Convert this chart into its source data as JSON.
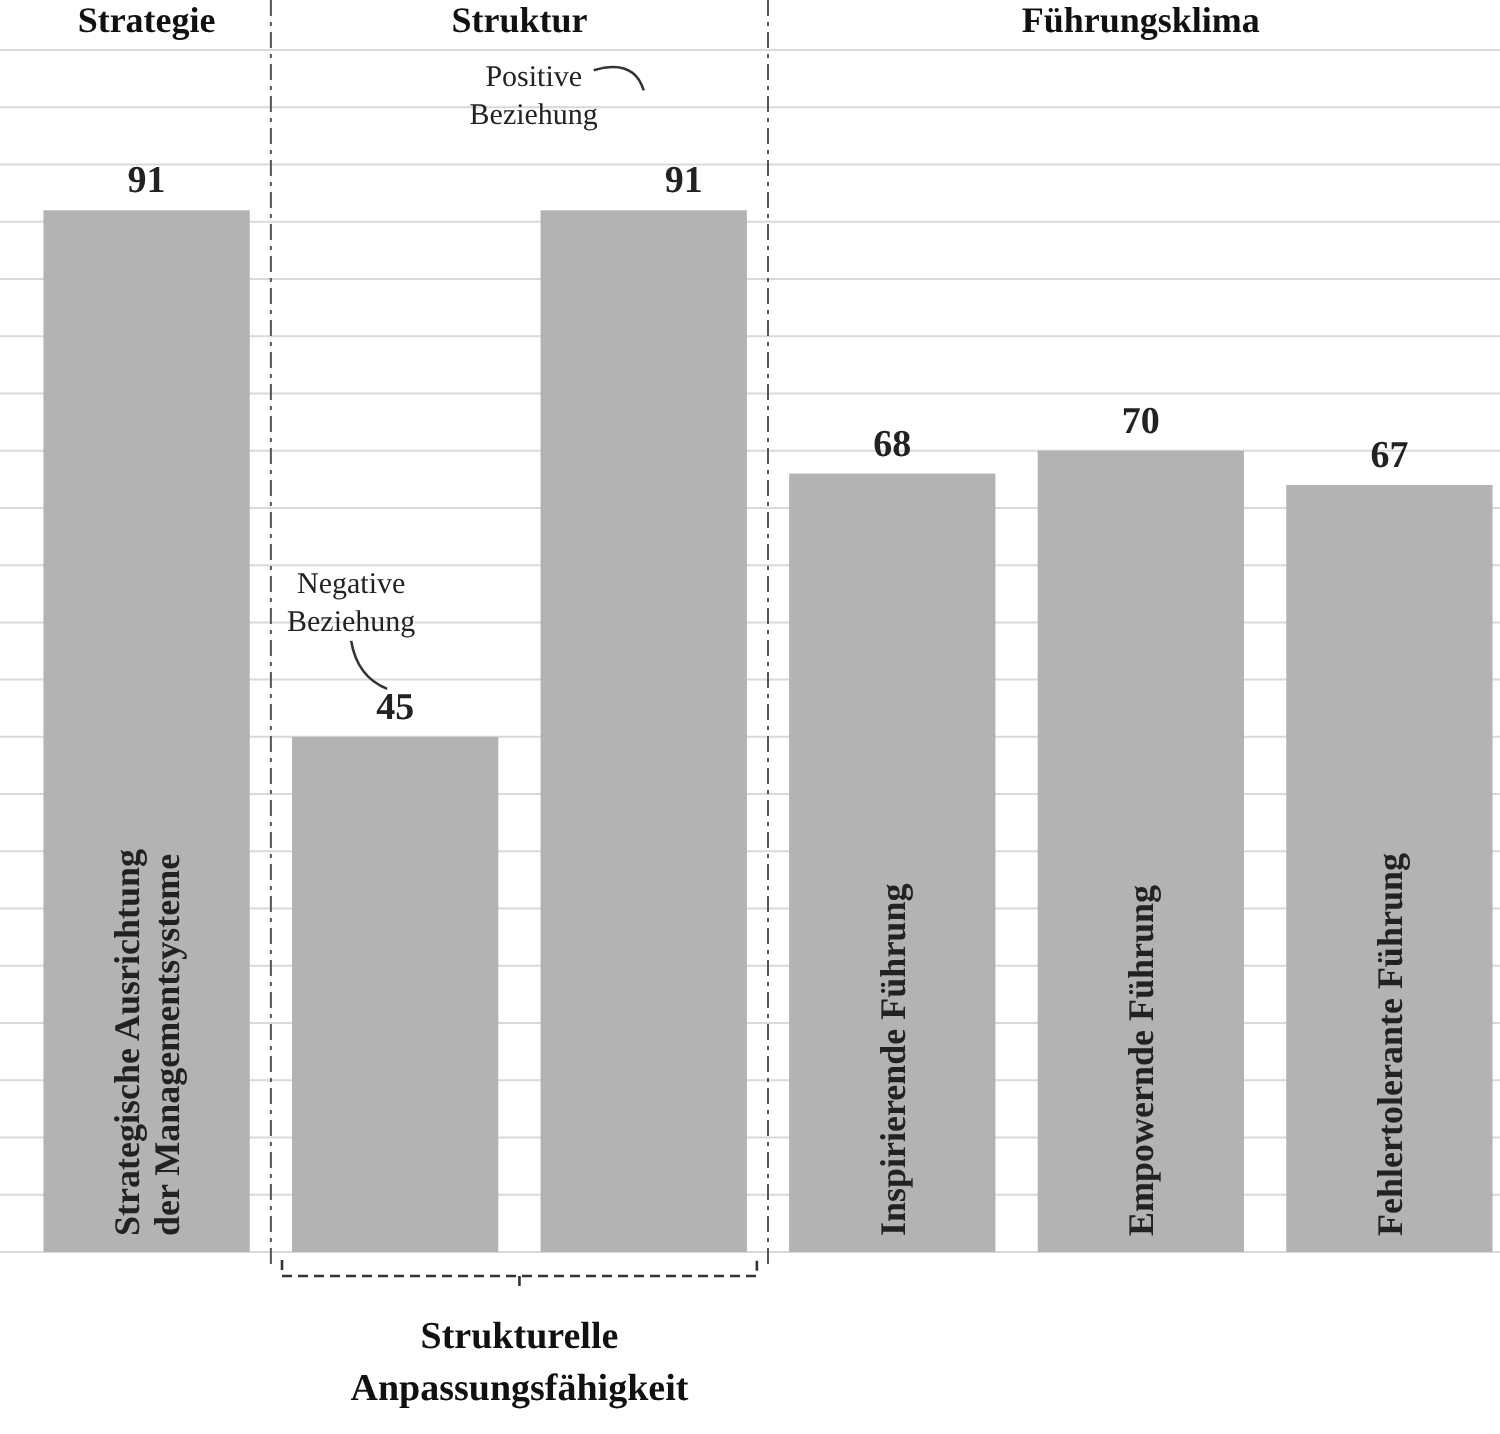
{
  "chart_data": {
    "type": "bar",
    "categories": [
      "Strategische Ausrichtung der Managementsysteme",
      null,
      null,
      "Inspirierende Führung",
      "Empowernde Führung",
      "Fehlertolerante Führung"
    ],
    "values": [
      91,
      45,
      91,
      68,
      70,
      67
    ],
    "color": "#b3b3b3",
    "data_labels": true,
    "ylim": [
      0,
      105
    ],
    "yticks": [
      {
        "value": 0,
        "label": null
      },
      {
        "value": 5,
        "label": null
      },
      {
        "value": 10,
        "label": null
      },
      {
        "value": 15,
        "label": null
      },
      {
        "value": 20,
        "label": null
      },
      {
        "value": 25,
        "label": null
      },
      {
        "value": 30,
        "label": null
      },
      {
        "value": 35,
        "label": null
      },
      {
        "value": 40,
        "label": null
      },
      {
        "value": 45,
        "label": null
      },
      {
        "value": 50,
        "label": null
      },
      {
        "value": 55,
        "label": null
      },
      {
        "value": 60,
        "label": null
      },
      {
        "value": 65,
        "label": null
      },
      {
        "value": 70,
        "label": null
      },
      {
        "value": 75,
        "label": null
      },
      {
        "value": 80,
        "label": null
      },
      {
        "value": 85,
        "label": null
      },
      {
        "value": 90,
        "label": null
      },
      {
        "value": 95,
        "label": null
      },
      {
        "value": 100,
        "label": null
      },
      {
        "value": 105,
        "label": null
      }
    ],
    "tick_labels": "x",
    "grid": "y",
    "annotations": [
      "Strategie",
      "Struktur",
      "Führungsklima",
      "Negative Beziehung",
      "Positive Beziehung",
      "Strukturelle Anpassungsfähigkeit"
    ]
  }
}
